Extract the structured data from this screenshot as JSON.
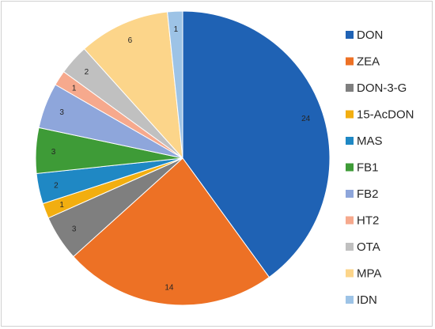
{
  "chart_data": {
    "type": "pie",
    "title": "",
    "legend_position": "right",
    "slices": [
      {
        "label": "DON",
        "value": 24,
        "color": "#1F62B4"
      },
      {
        "label": "ZEA",
        "value": 14,
        "color": "#ED7125"
      },
      {
        "label": "DON-3-G",
        "value": 3,
        "color": "#7F7F7F"
      },
      {
        "label": "15-AcDON",
        "value": 1,
        "color": "#F2AE10"
      },
      {
        "label": "MAS",
        "value": 2,
        "color": "#1F88C4"
      },
      {
        "label": "FB1",
        "value": 3,
        "color": "#3E9B37"
      },
      {
        "label": "FB2",
        "value": 3,
        "color": "#8EA6DB"
      },
      {
        "label": "HT2",
        "value": 1,
        "color": "#F6A98D"
      },
      {
        "label": "OTA",
        "value": 2,
        "color": "#C0C0C0"
      },
      {
        "label": "MPA",
        "value": 6,
        "color": "#FCD58A"
      },
      {
        "label": "IDN",
        "value": 1,
        "color": "#9DC3E6"
      }
    ]
  }
}
